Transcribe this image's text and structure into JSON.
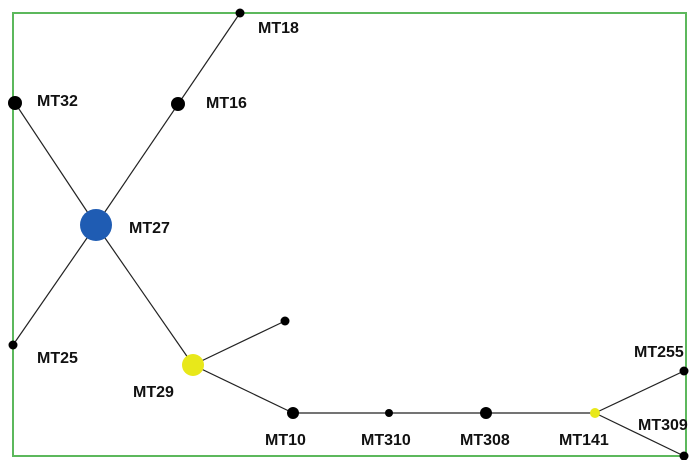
{
  "colors": {
    "frame": "#5cb85c",
    "edge": "#222222",
    "node_black": "#000000",
    "node_blue": "#1f5cb3",
    "node_yellow": "#e8e81a"
  },
  "nodes": [
    {
      "id": "MT18",
      "label": "MT18",
      "color": "node_black"
    },
    {
      "id": "MT32",
      "label": "MT32",
      "color": "node_black"
    },
    {
      "id": "MT16",
      "label": "MT16",
      "color": "node_black"
    },
    {
      "id": "MT27",
      "label": "MT27",
      "color": "node_blue"
    },
    {
      "id": "MT25",
      "label": "MT25",
      "color": "node_black"
    },
    {
      "id": "MT29",
      "label": "MT29",
      "color": "node_yellow"
    },
    {
      "id": "U1",
      "label": "",
      "color": "node_black"
    },
    {
      "id": "MT10",
      "label": "MT10",
      "color": "node_black"
    },
    {
      "id": "MT310",
      "label": "MT310",
      "color": "node_black"
    },
    {
      "id": "MT308",
      "label": "MT308",
      "color": "node_black"
    },
    {
      "id": "MT141",
      "label": "MT141",
      "color": "node_yellow"
    },
    {
      "id": "MT255",
      "label": "MT255",
      "color": "node_black"
    },
    {
      "id": "MT309",
      "label": "MT309",
      "color": "node_black"
    }
  ],
  "edges": [
    [
      "MT27",
      "MT18"
    ],
    [
      "MT27",
      "MT32"
    ],
    [
      "MT27",
      "MT25"
    ],
    [
      "MT27",
      "MT29"
    ],
    [
      "MT29",
      "U1"
    ],
    [
      "MT29",
      "MT10"
    ],
    [
      "MT10",
      "MT310"
    ],
    [
      "MT310",
      "MT308"
    ],
    [
      "MT308",
      "MT141"
    ],
    [
      "MT141",
      "MT255"
    ],
    [
      "MT141",
      "MT309"
    ]
  ]
}
